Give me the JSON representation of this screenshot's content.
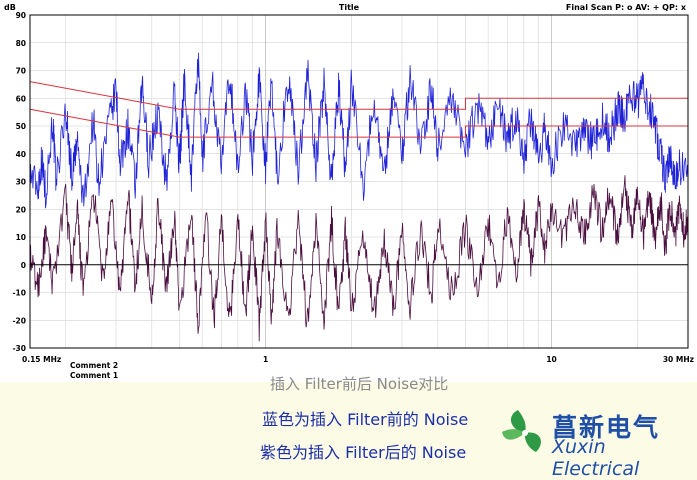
{
  "chart_data": {
    "type": "line",
    "title": "Title",
    "ylabel": "dB",
    "header_right": "Final Scan P: o  AV: +  QP: x",
    "x_scale": "log",
    "xlim": [
      0.15,
      30
    ],
    "ylim": [
      -30,
      90
    ],
    "y_ticks": [
      90,
      80,
      70,
      60,
      50,
      40,
      30,
      20,
      10,
      0,
      -10,
      -20,
      -30
    ],
    "x_ticks": [
      {
        "value": 0.15,
        "label": "0.15 MHz"
      },
      {
        "value": 1,
        "label": "1"
      },
      {
        "value": 10,
        "label": "10"
      },
      {
        "value": 30,
        "label": "30 MHz"
      }
    ],
    "comments": [
      "Comment 2",
      "Comment 1"
    ],
    "limit_lines": [
      {
        "color": "#d8343c",
        "points": [
          [
            0.15,
            66
          ],
          [
            0.5,
            56
          ],
          [
            5,
            56
          ],
          [
            5,
            60
          ],
          [
            30,
            60
          ]
        ]
      },
      {
        "color": "#d8343c",
        "points": [
          [
            0.15,
            56
          ],
          [
            0.5,
            46
          ],
          [
            5,
            46
          ],
          [
            5,
            50
          ],
          [
            30,
            50
          ]
        ]
      }
    ],
    "series": [
      {
        "color": "#1f22d6",
        "values": [
          [
            0.15,
            33
          ],
          [
            0.16,
            28
          ],
          [
            0.165,
            38
          ],
          [
            0.17,
            26
          ],
          [
            0.18,
            52
          ],
          [
            0.185,
            30
          ],
          [
            0.2,
            56
          ],
          [
            0.21,
            32
          ],
          [
            0.22,
            44
          ],
          [
            0.23,
            22
          ],
          [
            0.25,
            53
          ],
          [
            0.26,
            30
          ],
          [
            0.28,
            48
          ],
          [
            0.3,
            63
          ],
          [
            0.31,
            35
          ],
          [
            0.33,
            50
          ],
          [
            0.35,
            28
          ],
          [
            0.37,
            64
          ],
          [
            0.39,
            38
          ],
          [
            0.42,
            55
          ],
          [
            0.45,
            30
          ],
          [
            0.48,
            62
          ],
          [
            0.5,
            36
          ],
          [
            0.52,
            68
          ],
          [
            0.55,
            32
          ],
          [
            0.58,
            75
          ],
          [
            0.6,
            38
          ],
          [
            0.65,
            66
          ],
          [
            0.7,
            35
          ],
          [
            0.75,
            70
          ],
          [
            0.8,
            33
          ],
          [
            0.85,
            64
          ],
          [
            0.9,
            38
          ],
          [
            0.95,
            68
          ],
          [
            1.0,
            36
          ],
          [
            1.05,
            66
          ],
          [
            1.1,
            32
          ],
          [
            1.2,
            68
          ],
          [
            1.3,
            34
          ],
          [
            1.4,
            70
          ],
          [
            1.5,
            36
          ],
          [
            1.6,
            66
          ],
          [
            1.7,
            30
          ],
          [
            1.8,
            64
          ],
          [
            1.9,
            34
          ],
          [
            2.0,
            66
          ],
          [
            2.2,
            30
          ],
          [
            2.4,
            60
          ],
          [
            2.6,
            32
          ],
          [
            2.8,
            64
          ],
          [
            3.0,
            40
          ],
          [
            3.2,
            68
          ],
          [
            3.5,
            42
          ],
          [
            3.8,
            64
          ],
          [
            4.0,
            42
          ],
          [
            4.5,
            62
          ],
          [
            5.0,
            40
          ],
          [
            5.5,
            58
          ],
          [
            6.0,
            44
          ],
          [
            6.5,
            58
          ],
          [
            7.0,
            44
          ],
          [
            7.5,
            54
          ],
          [
            8.0,
            38
          ],
          [
            8.5,
            54
          ],
          [
            9.0,
            36
          ],
          [
            9.5,
            50
          ],
          [
            10.0,
            36
          ],
          [
            11.0,
            50
          ],
          [
            12.0,
            42
          ],
          [
            13.0,
            48
          ],
          [
            14.0,
            44
          ],
          [
            15.0,
            52
          ],
          [
            16.0,
            46
          ],
          [
            17.0,
            56
          ],
          [
            18.0,
            54
          ],
          [
            19.0,
            62
          ],
          [
            20.0,
            58
          ],
          [
            21.0,
            64
          ],
          [
            22.0,
            56
          ],
          [
            23.0,
            50
          ],
          [
            24.0,
            40
          ],
          [
            25.0,
            32
          ],
          [
            26.0,
            40
          ],
          [
            27.0,
            30
          ],
          [
            28.0,
            36
          ],
          [
            30.0,
            32
          ]
        ]
      },
      {
        "color": "#4a0f3f",
        "values": [
          [
            0.15,
            2
          ],
          [
            0.16,
            -8
          ],
          [
            0.17,
            10
          ],
          [
            0.18,
            -6
          ],
          [
            0.2,
            24
          ],
          [
            0.21,
            -2
          ],
          [
            0.22,
            18
          ],
          [
            0.23,
            -10
          ],
          [
            0.25,
            26
          ],
          [
            0.27,
            -6
          ],
          [
            0.29,
            22
          ],
          [
            0.31,
            -12
          ],
          [
            0.33,
            27
          ],
          [
            0.35,
            -8
          ],
          [
            0.37,
            20
          ],
          [
            0.4,
            -14
          ],
          [
            0.42,
            22
          ],
          [
            0.45,
            -10
          ],
          [
            0.48,
            18
          ],
          [
            0.5,
            -18
          ],
          [
            0.55,
            20
          ],
          [
            0.58,
            -22
          ],
          [
            0.62,
            18
          ],
          [
            0.66,
            -20
          ],
          [
            0.7,
            16
          ],
          [
            0.75,
            -22
          ],
          [
            0.8,
            18
          ],
          [
            0.85,
            -18
          ],
          [
            0.9,
            14
          ],
          [
            0.95,
            -22
          ],
          [
            1.0,
            16
          ],
          [
            1.05,
            -18
          ],
          [
            1.1,
            14
          ],
          [
            1.2,
            -20
          ],
          [
            1.3,
            16
          ],
          [
            1.4,
            -22
          ],
          [
            1.5,
            14
          ],
          [
            1.6,
            -20
          ],
          [
            1.7,
            16
          ],
          [
            1.8,
            -18
          ],
          [
            1.9,
            12
          ],
          [
            2.0,
            -16
          ],
          [
            2.2,
            12
          ],
          [
            2.4,
            -18
          ],
          [
            2.6,
            10
          ],
          [
            2.8,
            -16
          ],
          [
            3.0,
            12
          ],
          [
            3.2,
            -14
          ],
          [
            3.5,
            14
          ],
          [
            3.8,
            -12
          ],
          [
            4.0,
            16
          ],
          [
            4.5,
            -12
          ],
          [
            5.0,
            14
          ],
          [
            5.5,
            -10
          ],
          [
            6.0,
            16
          ],
          [
            6.5,
            -8
          ],
          [
            7.0,
            18
          ],
          [
            7.5,
            -4
          ],
          [
            8.0,
            20
          ],
          [
            8.5,
            0
          ],
          [
            9.0,
            22
          ],
          [
            9.5,
            4
          ],
          [
            10.0,
            22
          ],
          [
            11.0,
            8
          ],
          [
            12.0,
            24
          ],
          [
            13.0,
            10
          ],
          [
            14.0,
            26
          ],
          [
            15.0,
            12
          ],
          [
            16.0,
            26
          ],
          [
            17.0,
            10
          ],
          [
            18.0,
            28
          ],
          [
            19.0,
            12
          ],
          [
            20.0,
            28
          ],
          [
            21.0,
            10
          ],
          [
            22.0,
            26
          ],
          [
            23.0,
            8
          ],
          [
            24.0,
            24
          ],
          [
            25.0,
            6
          ],
          [
            26.0,
            22
          ],
          [
            27.0,
            10
          ],
          [
            28.0,
            20
          ],
          [
            29.0,
            12
          ],
          [
            30.0,
            18
          ]
        ]
      }
    ]
  },
  "captions": {
    "title": "插入 Filter前后 Noise对比",
    "blue": "蓝色为插入 Filter前的  Noise",
    "purple": "紫色为插入  Filter后的  Noise"
  },
  "logo": {
    "cn": "菖新电气",
    "en": "Xuxin Electrical",
    "colors": {
      "leaf": "#2e9a46",
      "text": "#1f4fa6"
    }
  }
}
